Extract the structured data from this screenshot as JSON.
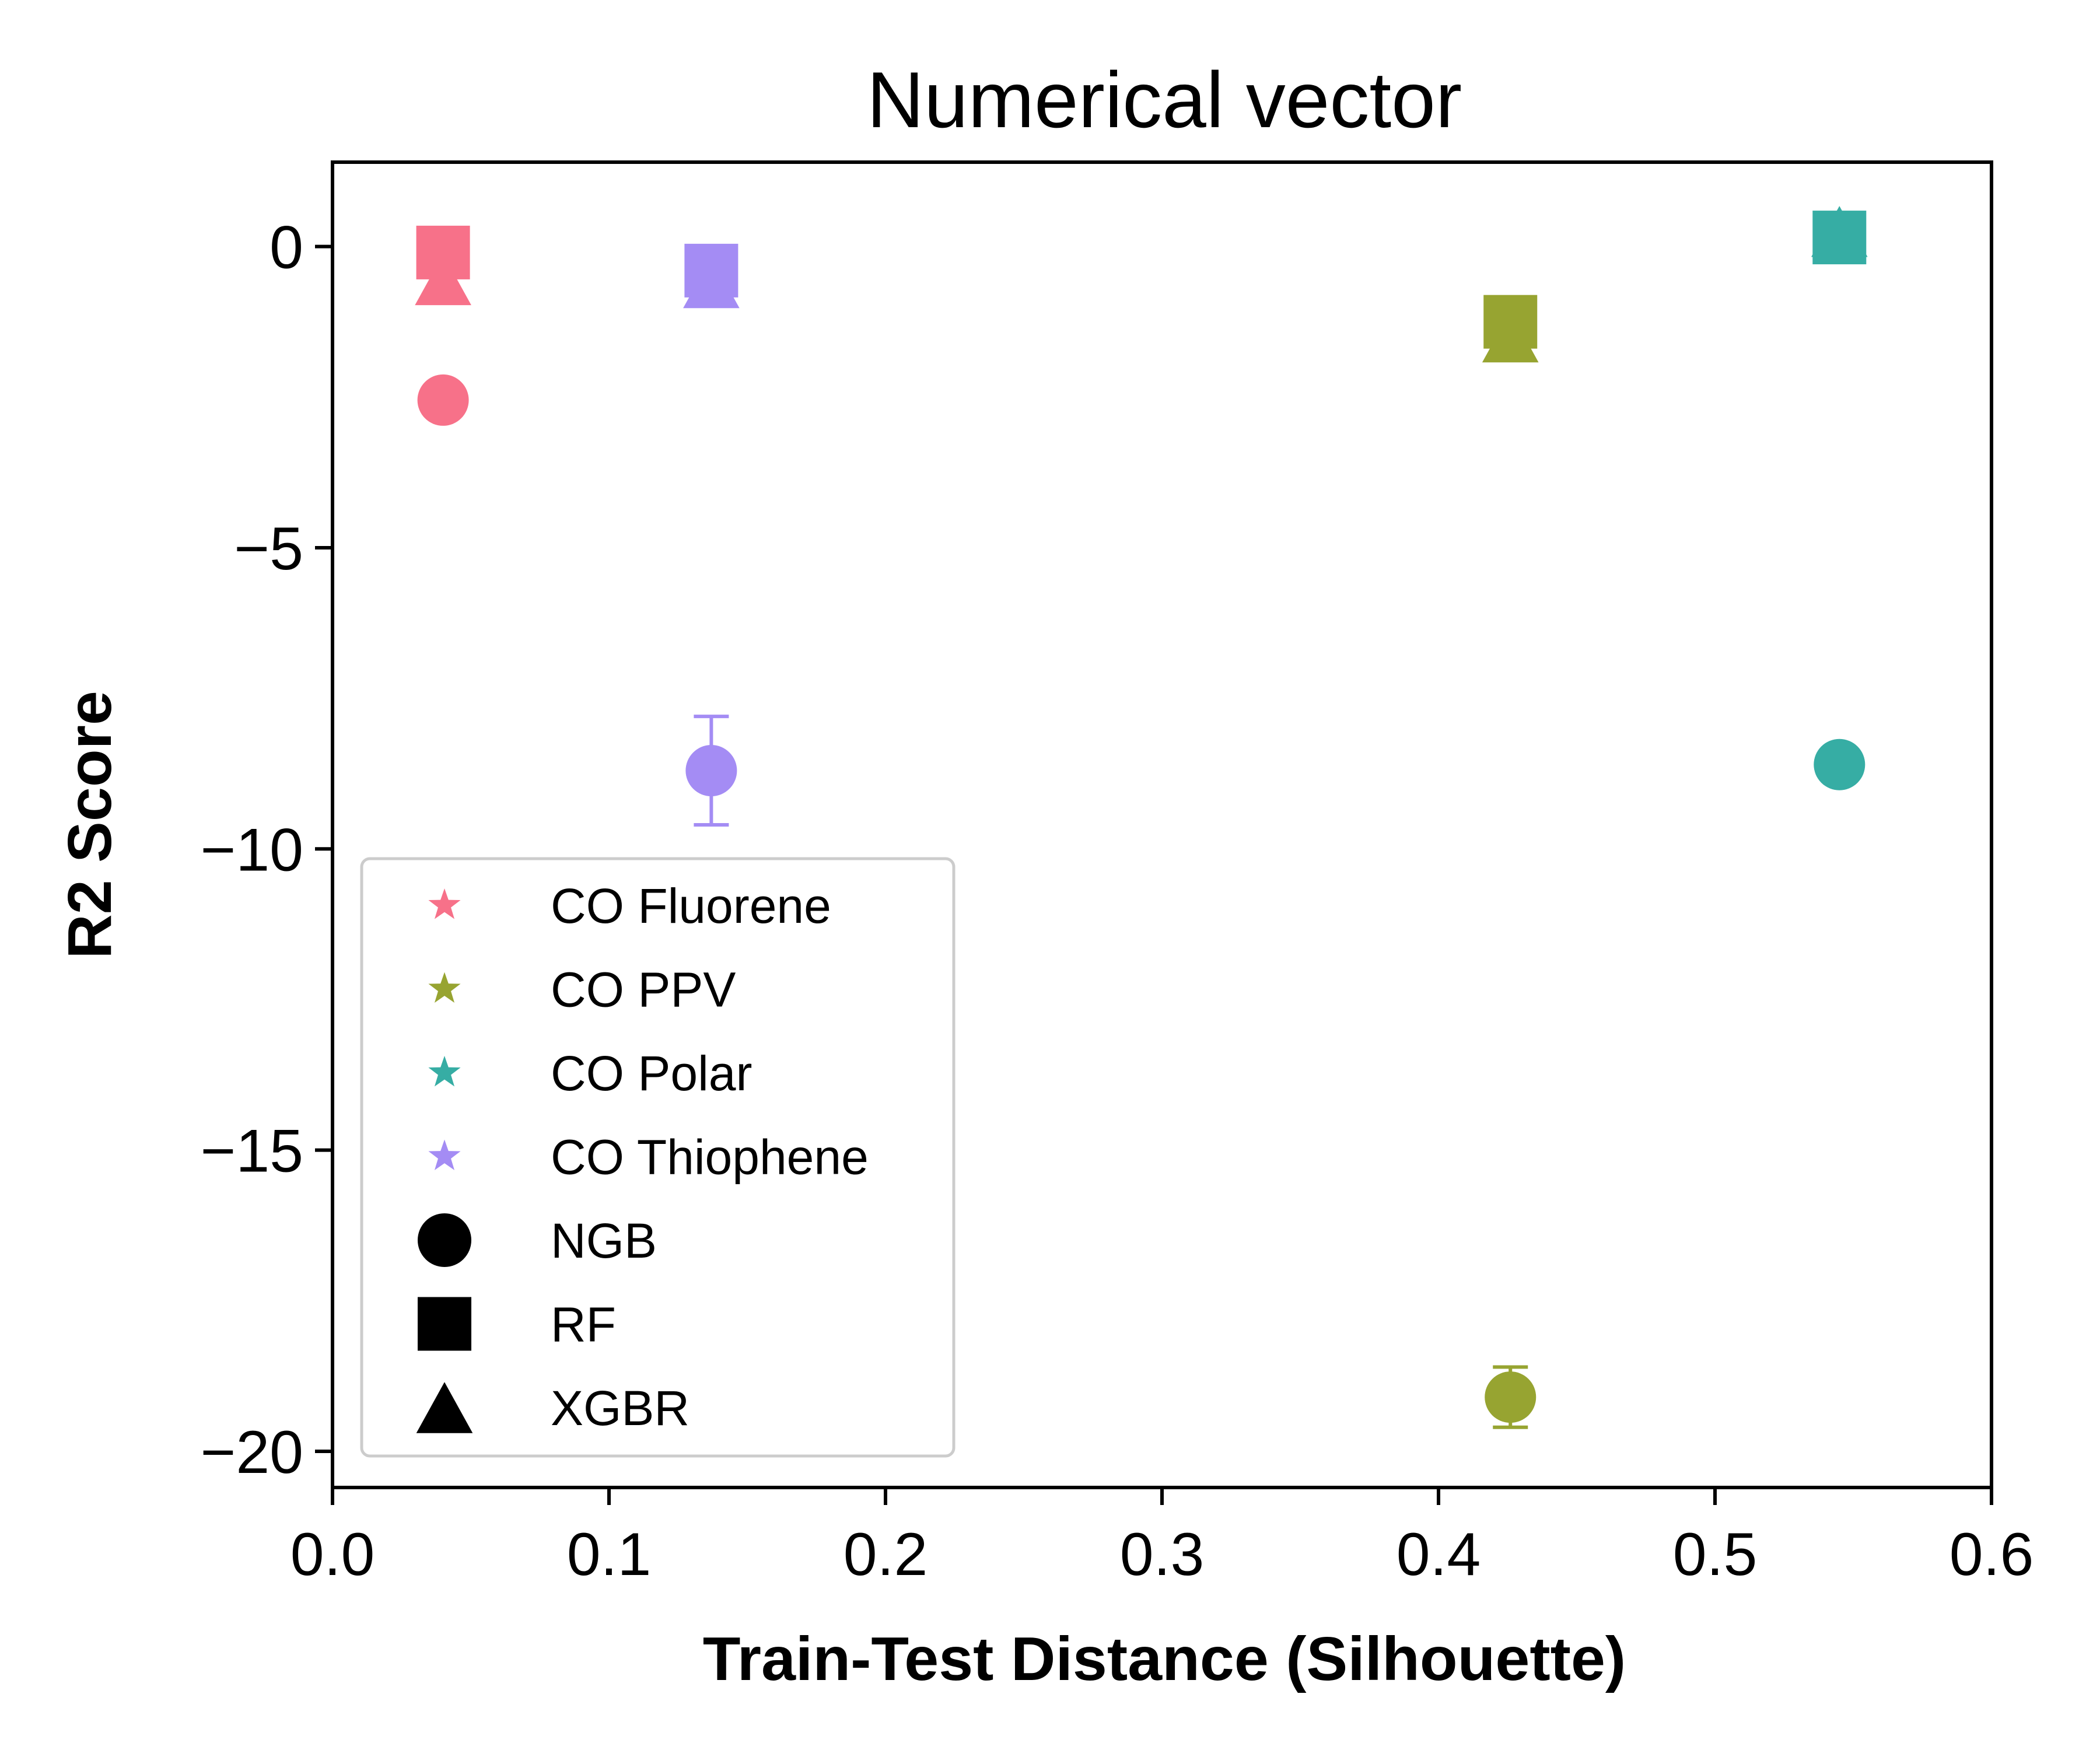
{
  "chart_data": {
    "type": "scatter",
    "title": "Numerical vector",
    "xlabel": "Train-Test Distance (Silhouette)",
    "ylabel": "R2 Score",
    "xlim": [
      0.0,
      0.6
    ],
    "ylim": [
      -20.6,
      1.4
    ],
    "xticks": [
      0.0,
      0.1,
      0.2,
      0.3,
      0.4,
      0.5,
      0.6
    ],
    "xtick_labels": [
      "0.0",
      "0.1",
      "0.2",
      "0.3",
      "0.4",
      "0.5",
      "0.6"
    ],
    "yticks": [
      0,
      -5,
      -10,
      -15,
      -20
    ],
    "ytick_labels": [
      "0",
      "−5",
      "−10",
      "−15",
      "−20"
    ],
    "grid": false,
    "legend_position": "lower-left",
    "groups": [
      {
        "name": "CO Fluorene",
        "color": "#f77189"
      },
      {
        "name": "CO PPV",
        "color": "#97a431"
      },
      {
        "name": "CO Polar",
        "color": "#36ada4"
      },
      {
        "name": "CO Thiophene",
        "color": "#a48cf4"
      }
    ],
    "models": [
      {
        "name": "NGB",
        "marker": "circle"
      },
      {
        "name": "RF",
        "marker": "square"
      },
      {
        "name": "XGBR",
        "marker": "triangle"
      }
    ],
    "points": [
      {
        "group": "CO Fluorene",
        "model": "XGBR",
        "x": 0.04,
        "y": -0.55,
        "err": 0
      },
      {
        "group": "CO Fluorene",
        "model": "RF",
        "x": 0.04,
        "y": -0.1,
        "err": 0
      },
      {
        "group": "CO Fluorene",
        "model": "NGB",
        "x": 0.04,
        "y": -2.55,
        "err": 0
      },
      {
        "group": "CO Thiophene",
        "model": "XGBR",
        "x": 0.137,
        "y": -0.6,
        "err": 0
      },
      {
        "group": "CO Thiophene",
        "model": "RF",
        "x": 0.137,
        "y": -0.4,
        "err": 0
      },
      {
        "group": "CO Thiophene",
        "model": "NGB",
        "x": 0.137,
        "y": -8.7,
        "err": 0.9
      },
      {
        "group": "CO PPV",
        "model": "XGBR",
        "x": 0.426,
        "y": -1.5,
        "err": 0
      },
      {
        "group": "CO PPV",
        "model": "RF",
        "x": 0.426,
        "y": -1.25,
        "err": 0
      },
      {
        "group": "CO PPV",
        "model": "NGB",
        "x": 0.426,
        "y": -19.1,
        "err": 0.5
      },
      {
        "group": "CO Polar",
        "model": "XGBR",
        "x": 0.545,
        "y": 0.25,
        "err": 0
      },
      {
        "group": "CO Polar",
        "model": "RF",
        "x": 0.545,
        "y": 0.15,
        "err": 0
      },
      {
        "group": "CO Polar",
        "model": "NGB",
        "x": 0.545,
        "y": -8.6,
        "err": 0
      }
    ]
  }
}
